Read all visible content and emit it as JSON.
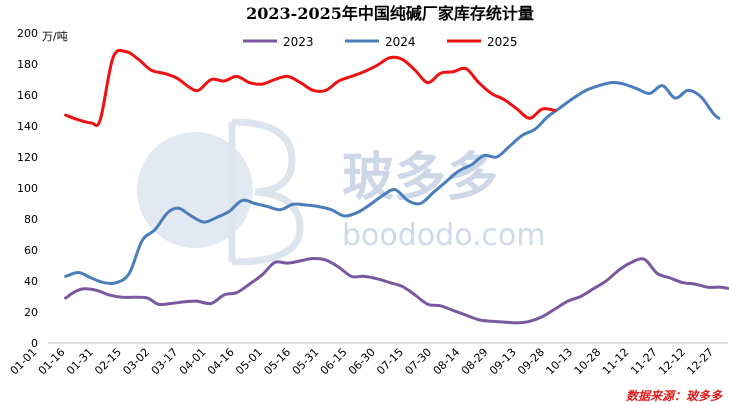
{
  "chart_data": {
    "type": "line",
    "title": "2023-2025年中国纯碱厂家库存统计量",
    "unit_label": "万/吨",
    "ylim": [
      0,
      200
    ],
    "yticks": [
      0,
      20,
      40,
      60,
      80,
      100,
      120,
      140,
      160,
      180,
      200
    ],
    "grid": false,
    "legend_position": "top",
    "x_dates": [
      "01-01",
      "01-16",
      "01-31",
      "02-15",
      "03-02",
      "03-17",
      "04-01",
      "04-16",
      "05-01",
      "05-16",
      "05-31",
      "06-15",
      "06-30",
      "07-15",
      "07-30",
      "08-14",
      "08-29",
      "09-13",
      "09-28",
      "10-13",
      "10-28",
      "11-12",
      "11-27",
      "12-12",
      "12-27"
    ],
    "series": [
      {
        "name": "2023",
        "color": "#7a58a0",
        "points": [
          [
            "01-03",
            29
          ],
          [
            "01-08",
            33
          ],
          [
            "01-13",
            35
          ],
          [
            "01-20",
            34
          ],
          [
            "01-27",
            31
          ],
          [
            "02-03",
            29.5
          ],
          [
            "02-10",
            29.5
          ],
          [
            "02-17",
            29
          ],
          [
            "02-23",
            25
          ],
          [
            "03-02",
            25.5
          ],
          [
            "03-09",
            26.5
          ],
          [
            "03-16",
            27
          ],
          [
            "03-24",
            25.5
          ],
          [
            "03-31",
            31
          ],
          [
            "04-07",
            32.5
          ],
          [
            "04-14",
            38
          ],
          [
            "04-21",
            44
          ],
          [
            "04-28",
            52
          ],
          [
            "05-05",
            51.5
          ],
          [
            "05-12",
            53
          ],
          [
            "05-19",
            54.5
          ],
          [
            "05-26",
            53.5
          ],
          [
            "06-02",
            49
          ],
          [
            "06-09",
            43
          ],
          [
            "06-16",
            43
          ],
          [
            "06-23",
            41.5
          ],
          [
            "06-30",
            39
          ],
          [
            "07-07",
            36.5
          ],
          [
            "07-14",
            31
          ],
          [
            "07-21",
            25
          ],
          [
            "07-28",
            24
          ],
          [
            "08-04",
            21
          ],
          [
            "08-11",
            18
          ],
          [
            "08-18",
            15
          ],
          [
            "08-25",
            14
          ],
          [
            "09-01",
            13.5
          ],
          [
            "09-08",
            13
          ],
          [
            "09-15",
            14
          ],
          [
            "09-22",
            17
          ],
          [
            "09-29",
            22
          ],
          [
            "10-06",
            27
          ],
          [
            "10-13",
            30
          ],
          [
            "10-20",
            35
          ],
          [
            "10-27",
            40
          ],
          [
            "11-03",
            47
          ],
          [
            "11-10",
            52
          ],
          [
            "11-17",
            54
          ],
          [
            "11-24",
            45
          ],
          [
            "12-01",
            42
          ],
          [
            "12-08",
            39
          ],
          [
            "12-15",
            38
          ],
          [
            "12-22",
            36
          ],
          [
            "12-29",
            36
          ],
          [
            "01-03x",
            35
          ]
        ]
      },
      {
        "name": "2024",
        "color": "#4a7ebb",
        "points": [
          [
            "01-03",
            43
          ],
          [
            "01-10",
            45.5
          ],
          [
            "01-17",
            42
          ],
          [
            "01-24",
            39
          ],
          [
            "01-31",
            39
          ],
          [
            "02-07",
            45
          ],
          [
            "02-14",
            66
          ],
          [
            "02-21",
            73
          ],
          [
            "02-28",
            84
          ],
          [
            "03-06",
            87
          ],
          [
            "03-13",
            82
          ],
          [
            "03-20",
            78
          ],
          [
            "03-27",
            81
          ],
          [
            "04-03",
            85
          ],
          [
            "04-10",
            92
          ],
          [
            "04-17",
            90
          ],
          [
            "04-24",
            88
          ],
          [
            "05-01",
            86
          ],
          [
            "05-08",
            89.5
          ],
          [
            "05-15",
            89
          ],
          [
            "05-22",
            88
          ],
          [
            "05-29",
            86
          ],
          [
            "06-05",
            82
          ],
          [
            "06-12",
            84
          ],
          [
            "06-19",
            89
          ],
          [
            "06-26",
            95
          ],
          [
            "07-03",
            99
          ],
          [
            "07-10",
            92
          ],
          [
            "07-17",
            90
          ],
          [
            "07-24",
            97
          ],
          [
            "07-31",
            104
          ],
          [
            "08-07",
            111
          ],
          [
            "08-14",
            115
          ],
          [
            "08-21",
            121
          ],
          [
            "08-28",
            120
          ],
          [
            "09-04",
            127
          ],
          [
            "09-11",
            134
          ],
          [
            "09-18",
            138
          ],
          [
            "09-25",
            146
          ],
          [
            "10-02",
            152
          ],
          [
            "10-09",
            158
          ],
          [
            "10-16",
            163
          ],
          [
            "10-23",
            166
          ],
          [
            "10-30",
            168
          ],
          [
            "11-06",
            167
          ],
          [
            "11-13",
            164
          ],
          [
            "11-20",
            161
          ],
          [
            "11-27",
            166
          ],
          [
            "12-04",
            158
          ],
          [
            "12-11",
            163
          ],
          [
            "12-18",
            159
          ],
          [
            "12-25",
            148
          ],
          [
            "12-28",
            145
          ]
        ]
      },
      {
        "name": "2025",
        "color": "#ee1111",
        "points": [
          [
            "01-03",
            147
          ],
          [
            "01-10",
            144
          ],
          [
            "01-17",
            142
          ],
          [
            "01-22",
            144
          ],
          [
            "01-29",
            184
          ],
          [
            "02-05",
            188
          ],
          [
            "02-12",
            183
          ],
          [
            "02-19",
            176
          ],
          [
            "02-26",
            174
          ],
          [
            "03-05",
            171
          ],
          [
            "03-12",
            165
          ],
          [
            "03-17",
            163
          ],
          [
            "03-24",
            170
          ],
          [
            "03-31",
            169
          ],
          [
            "04-07",
            172
          ],
          [
            "04-14",
            168
          ],
          [
            "04-21",
            167
          ],
          [
            "04-28",
            170
          ],
          [
            "05-05",
            172
          ],
          [
            "05-12",
            168
          ],
          [
            "05-19",
            163
          ],
          [
            "05-26",
            163
          ],
          [
            "06-02",
            169
          ],
          [
            "06-09",
            172
          ],
          [
            "06-16",
            175
          ],
          [
            "06-23",
            179
          ],
          [
            "06-30",
            184
          ],
          [
            "07-07",
            183
          ],
          [
            "07-14",
            176
          ],
          [
            "07-21",
            168
          ],
          [
            "07-28",
            174
          ],
          [
            "08-04",
            175
          ],
          [
            "08-11",
            177
          ],
          [
            "08-18",
            168
          ],
          [
            "08-25",
            161
          ],
          [
            "09-01",
            157
          ],
          [
            "09-08",
            151
          ],
          [
            "09-15",
            145
          ],
          [
            "09-22",
            151
          ],
          [
            "09-29",
            150
          ]
        ]
      }
    ]
  },
  "watermark": {
    "latin": "boododo.com",
    "chinese": "玻多多"
  },
  "source_note": "数据来源：玻多多"
}
